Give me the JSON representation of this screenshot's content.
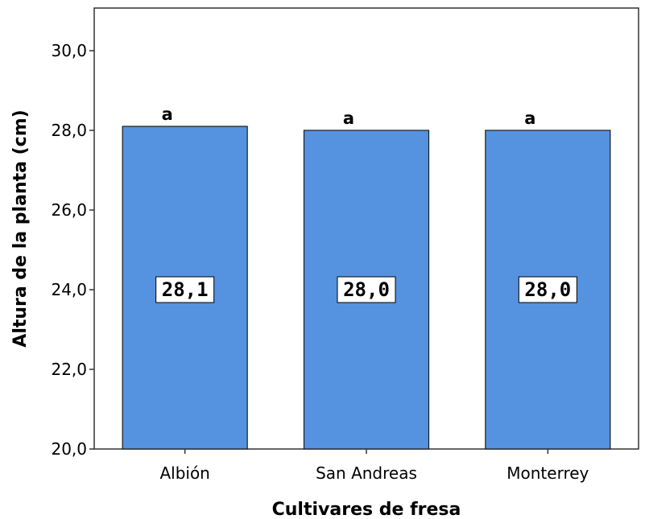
{
  "chart_data": {
    "type": "bar",
    "categories": [
      "Albión",
      "San Andreas",
      "Monterrey"
    ],
    "values": [
      28.1,
      28.0,
      28.0
    ],
    "value_labels": [
      "28,1",
      "28,0",
      "28,0"
    ],
    "significance_letters": [
      "a",
      "a",
      "a"
    ],
    "xlabel": "Cultivares de fresa",
    "ylabel": "Altura de la planta (cm)",
    "ylim": [
      20,
      31
    ],
    "yticks": [
      20,
      22,
      24,
      26,
      28,
      30
    ],
    "ytick_labels": [
      "20,0",
      "22,0",
      "24,0",
      "26,0",
      "28,0",
      "30,0"
    ],
    "grid": false,
    "colors": {
      "bar_fill": "#5592e0",
      "bar_stroke": "#1a1a1a",
      "frame": "#333333",
      "label_box": "#ffffff"
    }
  }
}
